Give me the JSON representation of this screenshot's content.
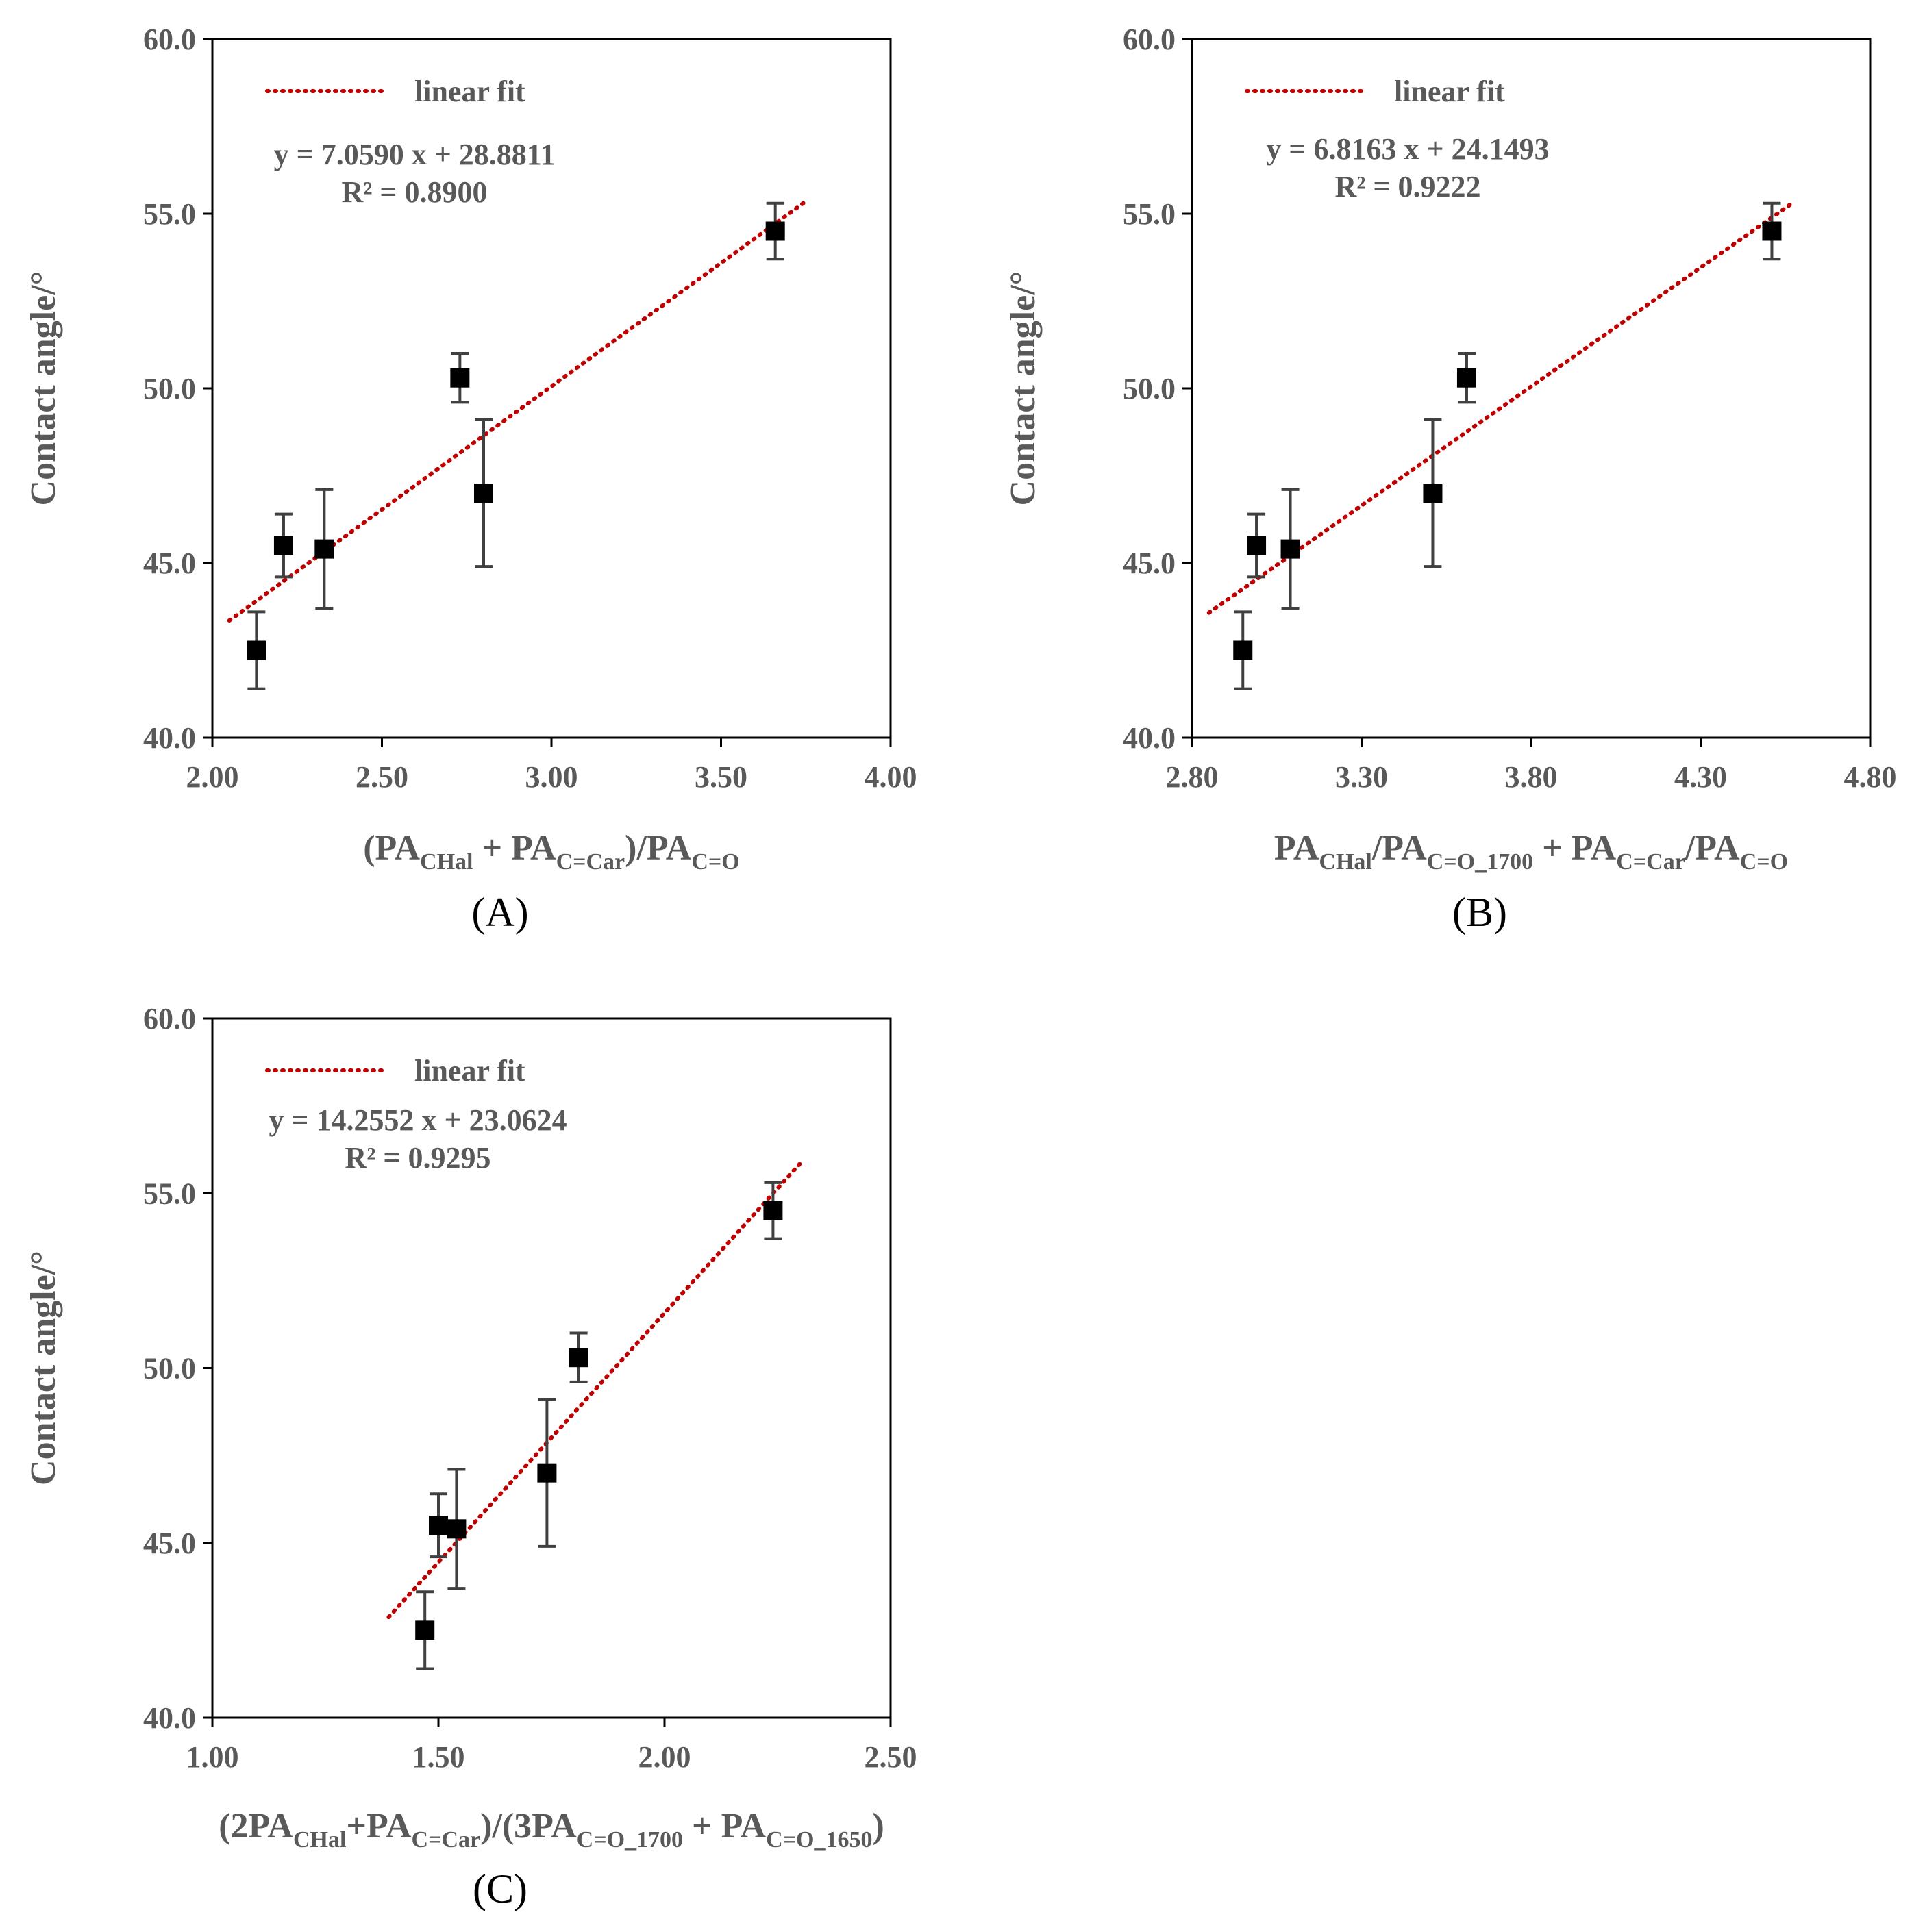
{
  "chart_data": [
    {
      "type": "scatter",
      "panel": "(A)",
      "ylabel": "Contact angle/°",
      "xlabel_parts": [
        {
          "t": "(PA",
          "sub": false
        },
        {
          "t": "CHal",
          "sub": true
        },
        {
          "t": " + PA",
          "sub": false
        },
        {
          "t": "C=Car",
          "sub": true
        },
        {
          "t": ")/PA",
          "sub": false
        },
        {
          "t": "C=O",
          "sub": true
        }
      ],
      "xlim": [
        2.0,
        4.0
      ],
      "ylim": [
        40.0,
        60.0
      ],
      "xticks": [
        "2.00",
        "2.50",
        "3.00",
        "3.50",
        "4.00"
      ],
      "yticks": [
        "40.0",
        "45.0",
        "50.0",
        "55.0",
        "60.0"
      ],
      "legend_label": "linear fit",
      "equation": "y = 7.0590 x + 28.8811",
      "r2": "R² = 0.8900",
      "fit": {
        "slope": 7.059,
        "intercept": 28.8811,
        "x_range": [
          2.05,
          3.75
        ]
      },
      "points": [
        {
          "x": 2.13,
          "y": 42.5,
          "err": 1.1
        },
        {
          "x": 2.21,
          "y": 45.5,
          "err": 0.9
        },
        {
          "x": 2.33,
          "y": 45.4,
          "err": 1.7
        },
        {
          "x": 2.73,
          "y": 50.3,
          "err": 0.7
        },
        {
          "x": 2.8,
          "y": 47.0,
          "err": 2.1
        },
        {
          "x": 3.66,
          "y": 54.5,
          "err": 0.8
        }
      ]
    },
    {
      "type": "scatter",
      "panel": "(B)",
      "ylabel": "Contact angle/°",
      "xlabel_parts": [
        {
          "t": "PA",
          "sub": false
        },
        {
          "t": "CHal",
          "sub": true
        },
        {
          "t": "/PA",
          "sub": false
        },
        {
          "t": "C=O_1700",
          "sub": true
        },
        {
          "t": " + PA",
          "sub": false
        },
        {
          "t": "C=Car",
          "sub": true
        },
        {
          "t": "/PA",
          "sub": false
        },
        {
          "t": "C=O",
          "sub": true
        }
      ],
      "xlim": [
        2.8,
        4.8
      ],
      "ylim": [
        40.0,
        60.0
      ],
      "xticks": [
        "2.80",
        "3.30",
        "3.80",
        "4.30",
        "4.80"
      ],
      "yticks": [
        "40.0",
        "45.0",
        "50.0",
        "55.0",
        "60.0"
      ],
      "legend_label": "linear fit",
      "equation": "y = 6.8163 x + 24.1493",
      "r2": "R² = 0.9222",
      "fit": {
        "slope": 6.8163,
        "intercept": 24.1493,
        "x_range": [
          2.85,
          4.57
        ]
      },
      "points": [
        {
          "x": 2.95,
          "y": 42.5,
          "err": 1.1
        },
        {
          "x": 2.99,
          "y": 45.5,
          "err": 0.9
        },
        {
          "x": 3.09,
          "y": 45.4,
          "err": 1.7
        },
        {
          "x": 3.51,
          "y": 47.0,
          "err": 2.1
        },
        {
          "x": 3.61,
          "y": 50.3,
          "err": 0.7
        },
        {
          "x": 4.51,
          "y": 54.5,
          "err": 0.8
        }
      ]
    },
    {
      "type": "scatter",
      "panel": "(C)",
      "ylabel": "Contact angle/°",
      "xlabel_parts": [
        {
          "t": "(2PA",
          "sub": false
        },
        {
          "t": "CHal",
          "sub": true
        },
        {
          "t": "+PA",
          "sub": false
        },
        {
          "t": "C=Car",
          "sub": true
        },
        {
          "t": ")/(3PA",
          "sub": false
        },
        {
          "t": "C=O_1700",
          "sub": true
        },
        {
          "t": " + PA",
          "sub": false
        },
        {
          "t": "C=O_1650",
          "sub": true
        },
        {
          "t": ")",
          "sub": false
        }
      ],
      "xlim": [
        1.0,
        2.5
      ],
      "ylim": [
        40.0,
        60.0
      ],
      "xticks": [
        "1.00",
        "1.50",
        "2.00",
        "2.50"
      ],
      "yticks": [
        "40.0",
        "45.0",
        "50.0",
        "55.0",
        "60.0"
      ],
      "legend_label": "linear fit",
      "equation": "y = 14.2552 x + 23.0624",
      "r2": "R² = 0.9295",
      "fit": {
        "slope": 14.2552,
        "intercept": 23.0624,
        "x_range": [
          1.39,
          2.3
        ]
      },
      "points": [
        {
          "x": 1.47,
          "y": 42.5,
          "err": 1.1
        },
        {
          "x": 1.5,
          "y": 45.5,
          "err": 0.9
        },
        {
          "x": 1.54,
          "y": 45.4,
          "err": 1.7
        },
        {
          "x": 1.74,
          "y": 47.0,
          "err": 2.1
        },
        {
          "x": 1.81,
          "y": 50.3,
          "err": 0.7
        },
        {
          "x": 2.24,
          "y": 54.5,
          "err": 0.8
        }
      ]
    }
  ]
}
